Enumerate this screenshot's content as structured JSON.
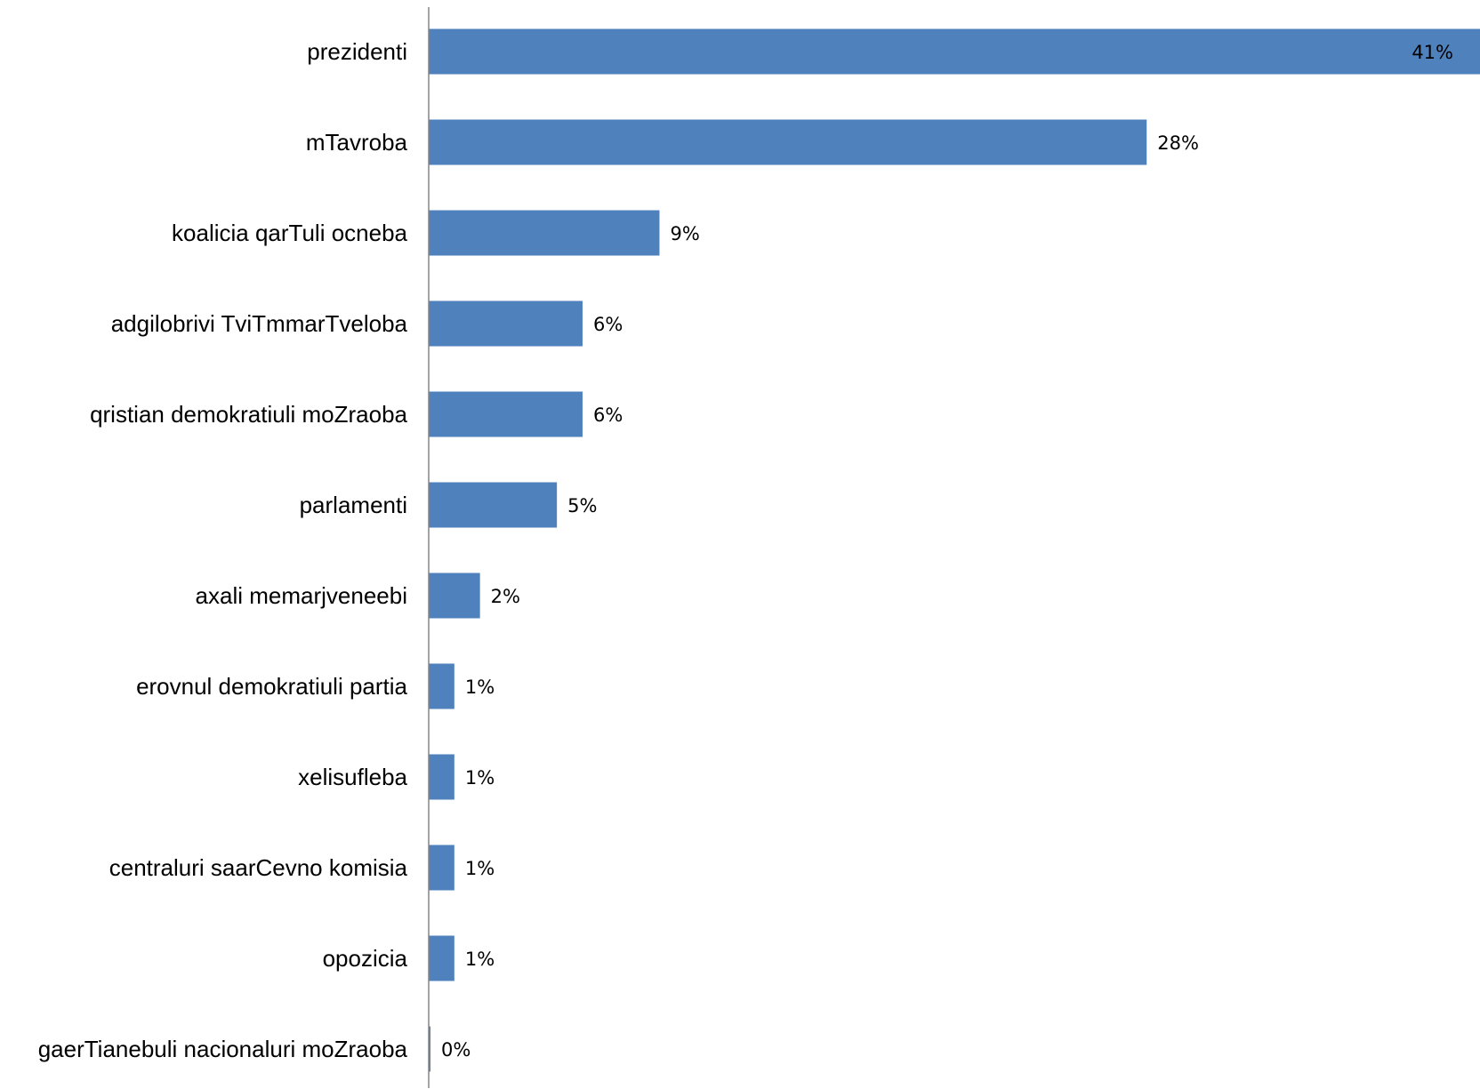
{
  "chart_data": {
    "type": "bar",
    "orientation": "horizontal",
    "categories": [
      "prezidenti",
      "mTavroba",
      "koalicia qarTuli ocneba",
      "adgilobrivi TviTmmarTveloba",
      "qristian demokratiuli moZraoba",
      "parlamenti",
      "axali memarjveneebi",
      "erovnul demokratiuli partia",
      "xelisufleba",
      "centraluri saarCevno komisia",
      "opozicia",
      "gaerTianebuli nacionaluri moZraoba"
    ],
    "values": [
      41,
      28,
      9,
      6,
      6,
      5,
      2,
      1,
      1,
      1,
      1,
      0
    ],
    "data_labels": [
      "41%",
      "28%",
      "9%",
      "6%",
      "6%",
      "5%",
      "2%",
      "1%",
      "1%",
      "1%",
      "1%",
      "0%"
    ],
    "unit": "%",
    "title": "",
    "xlabel": "",
    "ylabel": "",
    "xlim": [
      0,
      41
    ],
    "grid": false,
    "legend": "none",
    "bar_color": "#4F81BD",
    "axis_color": "#868686"
  }
}
